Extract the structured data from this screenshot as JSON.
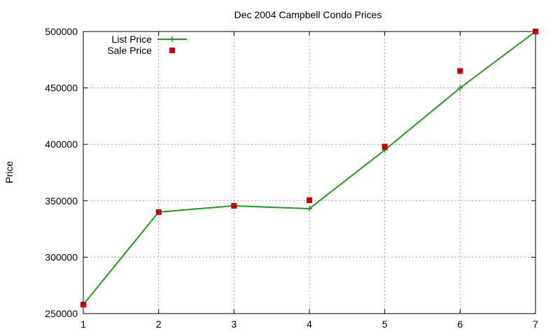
{
  "chart_data": {
    "type": "line",
    "title": "Dec 2004 Campbell Condo Prices",
    "xlabel": "",
    "ylabel": "Price",
    "xlim": [
      1,
      7
    ],
    "ylim": [
      250000,
      500000
    ],
    "x_ticks": [
      "1",
      "2",
      "3",
      "4",
      "5",
      "6",
      "7"
    ],
    "y_ticks": [
      "250000",
      "300000",
      "350000",
      "400000",
      "450000",
      "500000"
    ],
    "grid": true,
    "legend_position": "top-left",
    "series": [
      {
        "name": "List Price",
        "style": "line+cross",
        "color": "#1a9e1a",
        "x": [
          1,
          2,
          3,
          4,
          5,
          6,
          7
        ],
        "y": [
          258000,
          340000,
          345500,
          343000,
          395000,
          450000,
          500000
        ]
      },
      {
        "name": "Sale Price",
        "style": "square-points",
        "color": "#cc0000",
        "x": [
          1,
          2,
          3,
          4,
          5,
          6,
          7
        ],
        "y": [
          258000,
          340000,
          345500,
          350500,
          398000,
          465000,
          500000
        ]
      }
    ]
  }
}
